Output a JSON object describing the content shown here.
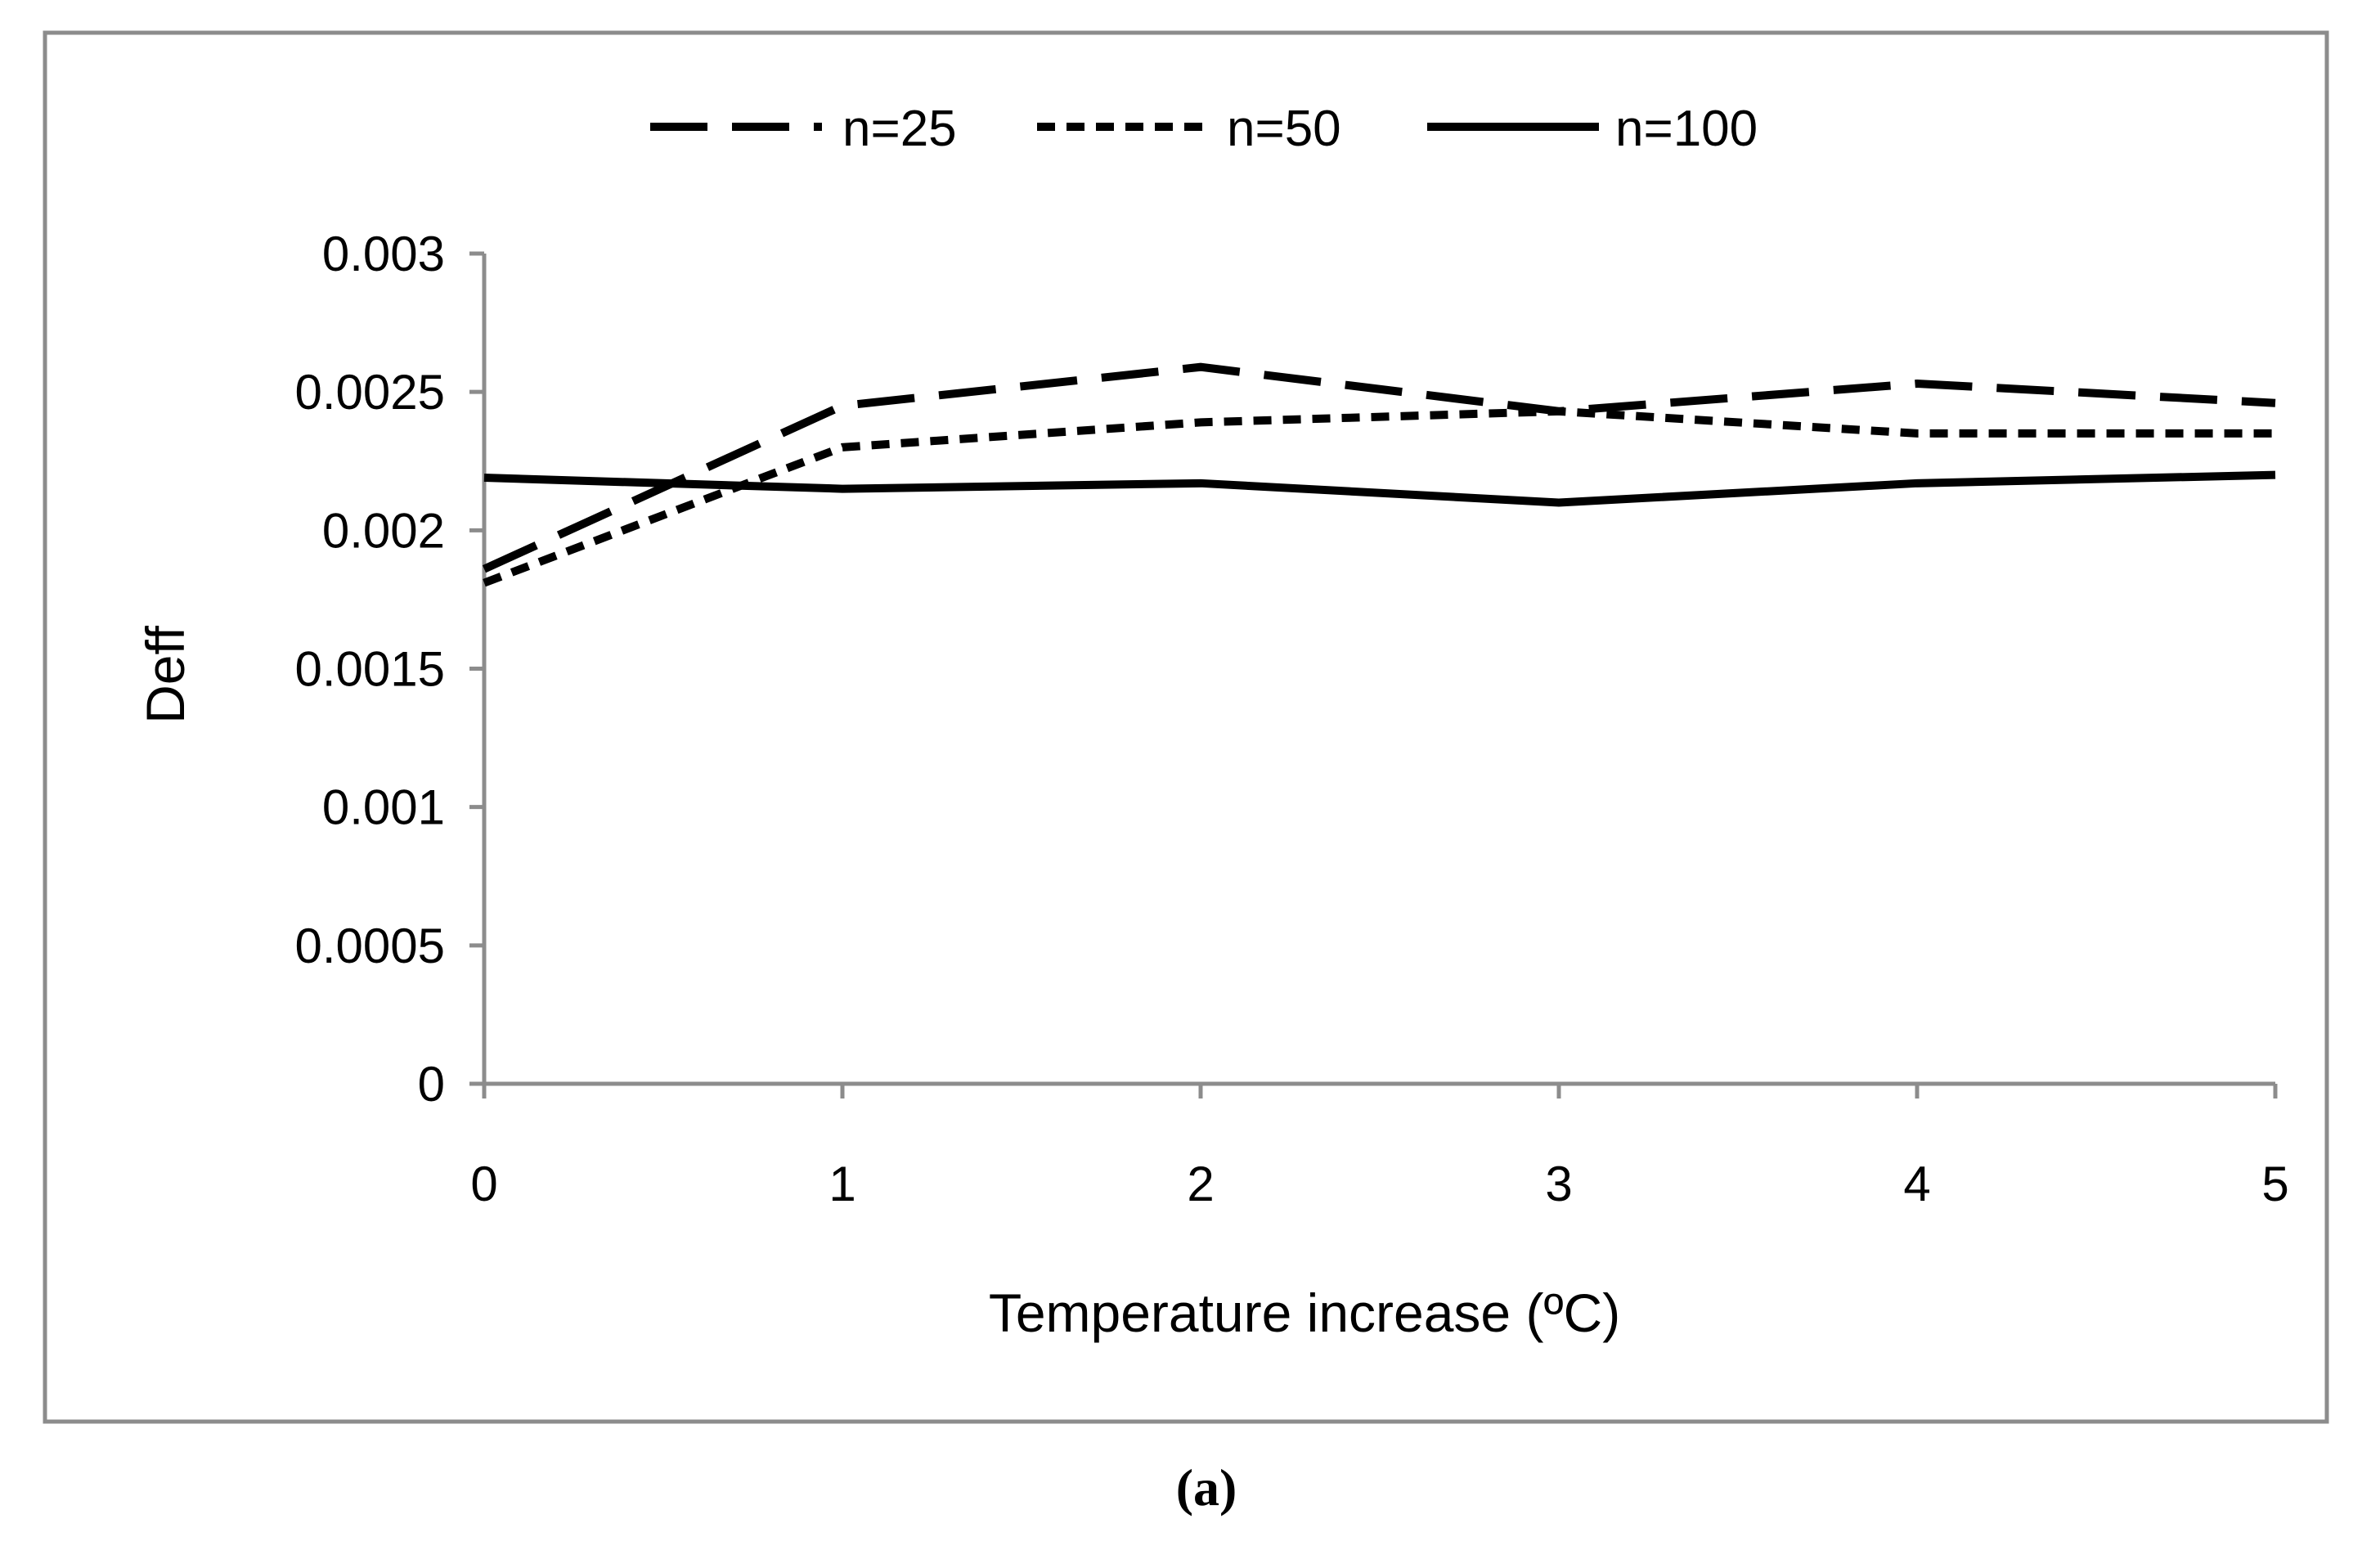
{
  "chart_data": {
    "type": "line",
    "title": "",
    "xlabel": "Temperature  increase (ºC)",
    "ylabel": "Deff",
    "x": [
      0,
      1,
      2,
      3,
      4,
      5
    ],
    "x_tick_labels": [
      "0",
      "1",
      "2",
      "3",
      "4",
      "5"
    ],
    "y_tick_labels": [
      "0",
      "0.0005",
      "0.001",
      "0.0015",
      "0.002",
      "0.0025",
      "0.003"
    ],
    "y_ticks": [
      0,
      0.0005,
      0.001,
      0.0015,
      0.002,
      0.0025,
      0.003
    ],
    "ylim": [
      0,
      0.003
    ],
    "xlim": [
      0,
      5
    ],
    "grid": false,
    "legend_position": "top-center",
    "series": [
      {
        "name": "n=25",
        "style": "long-dash",
        "values": [
          0.00186,
          0.00245,
          0.00259,
          0.00243,
          0.00253,
          0.00246
        ]
      },
      {
        "name": "n=50",
        "style": "short-dash",
        "values": [
          0.00181,
          0.0023,
          0.00239,
          0.00243,
          0.00235,
          0.00235
        ]
      },
      {
        "name": "n=100",
        "style": "solid",
        "values": [
          0.00219,
          0.00215,
          0.00217,
          0.0021,
          0.00217,
          0.0022
        ]
      }
    ],
    "caption": "(a)"
  },
  "colors": {
    "line": "#000000",
    "axis": "#8c8c8c",
    "frame": "#8c8c8c"
  }
}
